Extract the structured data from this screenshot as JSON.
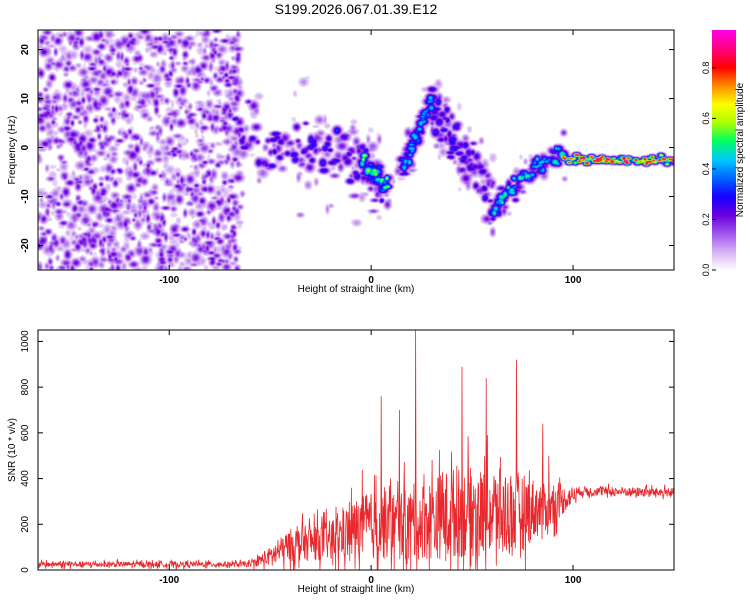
{
  "page": {
    "title": "S199.2026.067.01.39.E12"
  },
  "colors": {
    "snr_line": "#e8282d",
    "axis": "#000000",
    "background": "#ffffff"
  },
  "chart_data": [
    {
      "type": "heatmap",
      "title": "S199.2026.067.01.39.E12",
      "xlabel": "Height of straight line (km)",
      "ylabel": "Frequency (Hz)",
      "xlim": [
        -165,
        150
      ],
      "ylim": [
        -25,
        24
      ],
      "x_ticks": [
        "-100",
        "0",
        "100"
      ],
      "x_tick_values": [
        -100,
        0,
        100
      ],
      "y_ticks": [
        "-20",
        "-10",
        "0",
        "10",
        "20"
      ],
      "y_tick_values": [
        -20,
        -10,
        0,
        10,
        20
      ],
      "colorbar": {
        "label": "Normalized spectral amplitude",
        "range": [
          0.0,
          0.95
        ],
        "ticks": [
          "0.0",
          "0.2",
          "0.4",
          "0.6",
          "0.8"
        ],
        "tick_values": [
          0.0,
          0.2,
          0.4,
          0.6,
          0.8
        ],
        "palette": [
          "#ffffff",
          "#d6b4f4",
          "#a055ee",
          "#6a00e0",
          "#1700ff",
          "#0064ff",
          "#00c8ff",
          "#00ff64",
          "#aaff00",
          "#ffff00",
          "#ff8c00",
          "#ff0000",
          "#ff0080",
          "#ff00e6"
        ]
      },
      "ridges": [
        {
          "name": "noise-field",
          "x_range": [
            -165,
            -65
          ],
          "y_center": 0,
          "spread": 24,
          "amplitude": 0.15
        },
        {
          "name": "band-left",
          "points": [
            [
              -68,
              2
            ],
            [
              -50,
              1
            ],
            [
              -30,
              0
            ],
            [
              -10,
              -2
            ],
            [
              0,
              -5
            ],
            [
              5,
              -8
            ]
          ],
          "spread": 6,
          "amplitude": 0.25
        },
        {
          "name": "v-descend",
          "points": [
            [
              -5,
              -2
            ],
            [
              2,
              -6
            ],
            [
              8,
              -8
            ]
          ],
          "spread": 2,
          "amplitude": 0.45
        },
        {
          "name": "v-ascend",
          "points": [
            [
              15,
              -5
            ],
            [
              20,
              0
            ],
            [
              25,
              5
            ],
            [
              30,
              10
            ]
          ],
          "spread": 2,
          "amplitude": 0.35
        },
        {
          "name": "band-mid",
          "points": [
            [
              30,
              8
            ],
            [
              40,
              2
            ],
            [
              50,
              -5
            ],
            [
              60,
              -8
            ]
          ],
          "spread": 5,
          "amplitude": 0.25
        },
        {
          "name": "rising-arc",
          "points": [
            [
              60,
              -14
            ],
            [
              65,
              -10
            ],
            [
              75,
              -6
            ],
            [
              85,
              -3
            ],
            [
              95,
              -2
            ]
          ],
          "spread": 2,
          "amplitude": 0.4
        },
        {
          "name": "steady-line",
          "points": [
            [
              95,
              -2.5
            ],
            [
              150,
              -2.5
            ]
          ],
          "spread": 0.8,
          "amplitude": 0.8
        }
      ]
    },
    {
      "type": "line",
      "xlabel": "Height of straight line (km)",
      "ylabel": "SNR (10 * v/v)",
      "xlim": [
        -165,
        150
      ],
      "ylim": [
        0,
        1050
      ],
      "x_ticks": [
        "-100",
        "0",
        "100"
      ],
      "x_tick_values": [
        -100,
        0,
        100
      ],
      "y_ticks": [
        "0",
        "200",
        "400",
        "600",
        "800",
        "1000"
      ],
      "y_tick_values": [
        0,
        200,
        400,
        600,
        800,
        1000
      ],
      "series": [
        {
          "name": "SNR",
          "sample_step_km": 0.2,
          "envelope": [
            {
              "x": -165,
              "base": 25,
              "noise": 15
            },
            {
              "x": -60,
              "base": 25,
              "noise": 15
            },
            {
              "x": -50,
              "base": 60,
              "noise": 50
            },
            {
              "x": -40,
              "base": 110,
              "noise": 90
            },
            {
              "x": -20,
              "base": 130,
              "noise": 110
            },
            {
              "x": -5,
              "base": 190,
              "noise": 180
            },
            {
              "x": 20,
              "base": 200,
              "noise": 200
            },
            {
              "x": 40,
              "base": 250,
              "noise": 250
            },
            {
              "x": 70,
              "base": 250,
              "noise": 240
            },
            {
              "x": 90,
              "base": 280,
              "noise": 110
            },
            {
              "x": 103,
              "base": 345,
              "noise": 25
            },
            {
              "x": 150,
              "base": 340,
              "noise": 25
            }
          ],
          "peaks": [
            [
              5,
              760
            ],
            [
              14,
              700
            ],
            [
              22,
              1050
            ],
            [
              45,
              890
            ],
            [
              57,
              840
            ],
            [
              72,
              920
            ],
            [
              85,
              640
            ],
            [
              88,
              500
            ]
          ]
        }
      ]
    }
  ]
}
